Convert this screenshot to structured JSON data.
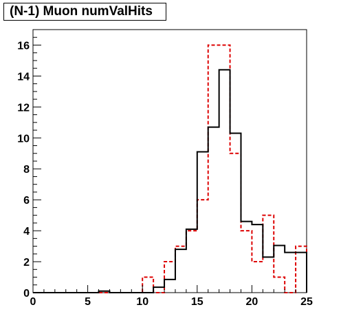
{
  "chart_data": {
    "type": "histogram",
    "title": "(N-1) Muon numValHits",
    "xlabel": "",
    "ylabel": "",
    "xlim": [
      0,
      25
    ],
    "ylim": [
      0,
      17
    ],
    "bin_width": 1,
    "x_ticks": [
      0,
      5,
      10,
      15,
      20,
      25
    ],
    "y_ticks": [
      0,
      2,
      4,
      6,
      8,
      10,
      12,
      14,
      16
    ],
    "x_tick_labels": [
      "0",
      "5",
      "10",
      "15",
      "20",
      "25"
    ],
    "y_tick_labels": [
      "0",
      "2",
      "4",
      "6",
      "8",
      "10",
      "12",
      "14",
      "16"
    ],
    "series": [
      {
        "style": "solid",
        "color": "#000000",
        "bin_edges": [
          0,
          1,
          2,
          3,
          4,
          5,
          6,
          7,
          8,
          9,
          10,
          11,
          12,
          13,
          14,
          15,
          16,
          17,
          18,
          19,
          20,
          21,
          22,
          23,
          24,
          25
        ],
        "values": [
          0,
          0,
          0,
          0,
          0,
          0,
          0.1,
          0,
          0,
          0,
          0,
          0.35,
          0.85,
          2.8,
          4.1,
          9.1,
          10.7,
          14.4,
          10.3,
          4.6,
          4.4,
          2.3,
          3.05,
          2.6,
          2.6
        ]
      },
      {
        "style": "dashed",
        "color": "#dd0000",
        "bin_edges": [
          0,
          1,
          2,
          3,
          4,
          5,
          6,
          7,
          8,
          9,
          10,
          11,
          12,
          13,
          14,
          15,
          16,
          17,
          18,
          19,
          20,
          21,
          22,
          23,
          24,
          25
        ],
        "values": [
          0,
          0,
          0,
          0,
          0,
          0,
          0,
          0,
          0,
          0,
          1,
          0,
          2,
          3,
          4,
          6,
          16,
          16,
          9,
          4,
          2,
          5,
          1,
          0,
          3
        ]
      }
    ],
    "grid": false,
    "legend": "none"
  }
}
